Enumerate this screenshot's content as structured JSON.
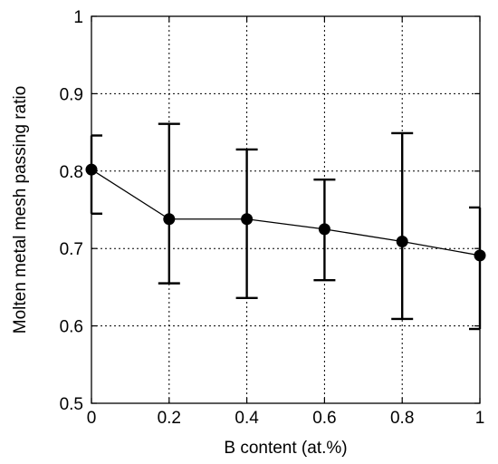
{
  "chart_data": {
    "type": "line",
    "title": "",
    "xlabel": "B content (at.%)",
    "ylabel": "Molten metal mesh passing ratio",
    "xlim": [
      0,
      1
    ],
    "ylim": [
      0.5,
      1
    ],
    "grid": true,
    "x_ticks": [
      {
        "value": 0,
        "label": "0"
      },
      {
        "value": 0.2,
        "label": "0.2"
      },
      {
        "value": 0.4,
        "label": "0.4"
      },
      {
        "value": 0.6,
        "label": "0.6"
      },
      {
        "value": 0.8,
        "label": "0.8"
      },
      {
        "value": 1,
        "label": "1"
      }
    ],
    "y_ticks": [
      {
        "value": 0.5,
        "label": "0.5"
      },
      {
        "value": 0.6,
        "label": "0.6"
      },
      {
        "value": 0.7,
        "label": "0.7"
      },
      {
        "value": 0.8,
        "label": "0.8"
      },
      {
        "value": 0.9,
        "label": "0.9"
      },
      {
        "value": 1,
        "label": "1"
      }
    ],
    "series": [
      {
        "color": "#000000",
        "marker": "filled-circle",
        "x": [
          0,
          0.2,
          0.4,
          0.6,
          0.8,
          1
        ],
        "y": [
          0.802,
          0.738,
          0.738,
          0.725,
          0.709,
          0.691
        ],
        "error_low": [
          0.745,
          0.655,
          0.636,
          0.659,
          0.609,
          0.596
        ],
        "error_high": [
          0.846,
          0.861,
          0.828,
          0.789,
          0.849,
          0.753
        ]
      }
    ]
  }
}
